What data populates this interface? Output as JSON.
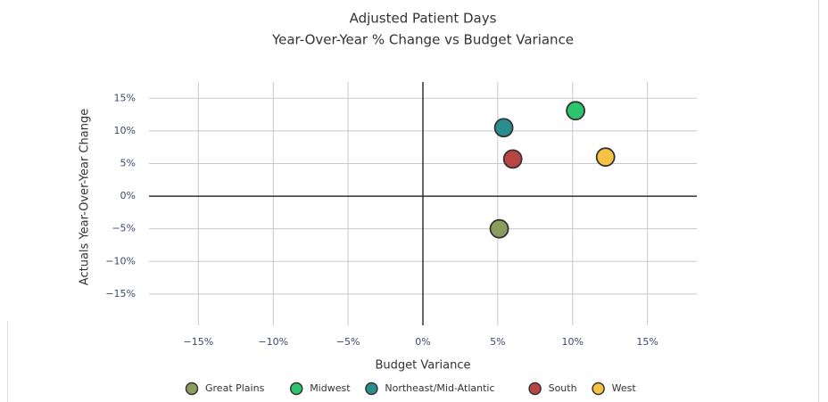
{
  "chart_data": {
    "type": "scatter",
    "title": "Adjusted Patient Days",
    "subtitle": "Year-Over-Year % Change vs Budget Variance",
    "x_label": "Budget Variance",
    "y_label": "Actuals Year-Over-Year Change",
    "xlim": [
      -18.3,
      18.3
    ],
    "ylim": [
      -19.8,
      17.5
    ],
    "xticks": [
      {
        "value": -15,
        "label": "−15%"
      },
      {
        "value": -10,
        "label": "−10%"
      },
      {
        "value": -5,
        "label": "−5%"
      },
      {
        "value": 0,
        "label": "0%"
      },
      {
        "value": 5,
        "label": "5%"
      },
      {
        "value": 10,
        "label": "10%"
      },
      {
        "value": 15,
        "label": "15%"
      }
    ],
    "yticks": [
      {
        "value": -15,
        "label": "−15%"
      },
      {
        "value": -10,
        "label": "−10%"
      },
      {
        "value": -5,
        "label": "−5%"
      },
      {
        "value": 0,
        "label": "0%"
      },
      {
        "value": 5,
        "label": "5%"
      },
      {
        "value": 10,
        "label": "10%"
      },
      {
        "value": 15,
        "label": "15%"
      }
    ],
    "grid": true,
    "legend": "bottom",
    "series": [
      {
        "name": "Great Plains",
        "color": "#8a9d5e",
        "x": [
          5.1
        ],
        "values": [
          -5.0
        ]
      },
      {
        "name": "Midwest",
        "color": "#2dc46e",
        "x": [
          10.2
        ],
        "values": [
          13.1
        ]
      },
      {
        "name": "Northeast/Mid-Atlantic",
        "color": "#2b8e8e",
        "x": [
          5.4
        ],
        "values": [
          10.5
        ]
      },
      {
        "name": "South",
        "color": "#b94444",
        "x": [
          6.0
        ],
        "values": [
          5.7
        ]
      },
      {
        "name": "West",
        "color": "#f7c244",
        "x": [
          12.2
        ],
        "values": [
          6.0
        ]
      }
    ]
  }
}
